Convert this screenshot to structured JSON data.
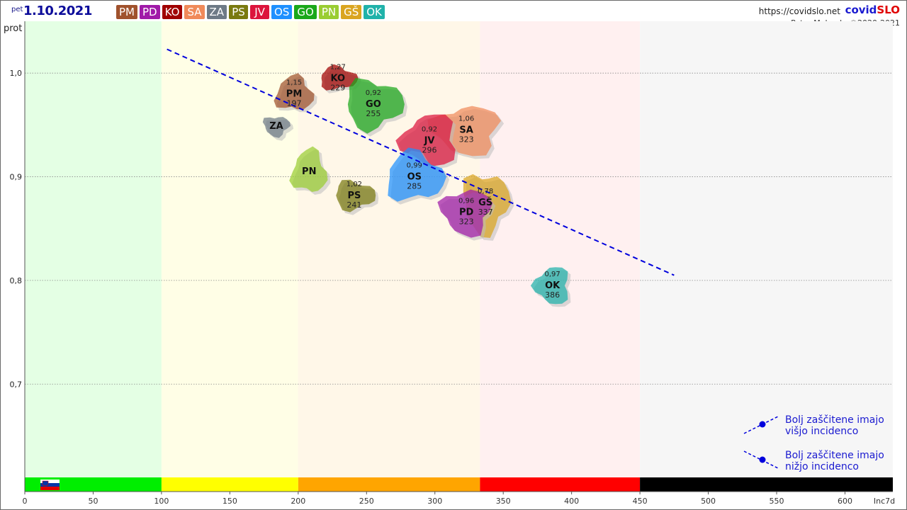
{
  "header": {
    "weekday": "pet",
    "date": "1.10.2021",
    "url": "https://covidslo.net",
    "brand_a": "covid",
    "brand_b": "SLO",
    "author": "Peter Malovrh, ©2020-2021"
  },
  "regions": [
    {
      "code": "PM",
      "color": "#a0522d"
    },
    {
      "code": "PD",
      "color": "#a01aa8"
    },
    {
      "code": "KO",
      "color": "#a00000"
    },
    {
      "code": "SA",
      "color": "#f08a5a"
    },
    {
      "code": "ZA",
      "color": "#6e7a86"
    },
    {
      "code": "PS",
      "color": "#7a7a10"
    },
    {
      "code": "JV",
      "color": "#dc143c"
    },
    {
      "code": "OS",
      "color": "#1e90ff"
    },
    {
      "code": "GO",
      "color": "#1aa81a"
    },
    {
      "code": "PN",
      "color": "#9acd32"
    },
    {
      "code": "GŠ",
      "color": "#daa520"
    },
    {
      "code": "OK",
      "color": "#20b2aa"
    }
  ],
  "legend": {
    "higher_line1": "Bolj zaščitene imajo",
    "higher_line2": "višjo incidenco",
    "lower_line1": "Bolj zaščitene imajo",
    "lower_line2": "nižjo incidenco",
    "dot_color": "#0000dd"
  },
  "chart_data": {
    "type": "scatter",
    "title": "",
    "ylabel": "prot",
    "xlabel": "Inc7d",
    "xlim": [
      0,
      635
    ],
    "ylim": [
      0.61,
      1.05
    ],
    "xticks": [
      0,
      50,
      100,
      150,
      200,
      250,
      300,
      350,
      400,
      450,
      500,
      550,
      600
    ],
    "yticks": [
      0.7,
      0.8,
      0.9,
      1.0
    ],
    "ytick_labels": [
      "0,7",
      "0,8",
      "0,9",
      "1,0"
    ],
    "grid": "horizontal dotted",
    "bands": [
      {
        "from": 0,
        "to": 100,
        "color": "#00ee00",
        "bg": "#e4ffe4"
      },
      {
        "from": 100,
        "to": 200,
        "color": "#ffff00",
        "bg": "#fffee6"
      },
      {
        "from": 200,
        "to": 333,
        "color": "#ffa500",
        "bg": "#fff7e8"
      },
      {
        "from": 333,
        "to": 450,
        "color": "#ff0000",
        "bg": "#fff0f0"
      },
      {
        "from": 450,
        "to": 635,
        "color": "#000000",
        "bg": "#f6f6f6"
      }
    ],
    "trend_line": {
      "x1": 104,
      "y1": 1.023,
      "x2": 475,
      "y2": 0.805,
      "color": "#0000dd"
    },
    "points": [
      {
        "code": "PM",
        "inc": 197,
        "prot": 0.98,
        "ratio": "1,15",
        "color": "#a0522d"
      },
      {
        "code": "KO",
        "inc": 229,
        "prot": 0.995,
        "ratio": "1,27",
        "color": "#a00000"
      },
      {
        "code": "GO",
        "inc": 255,
        "prot": 0.97,
        "ratio": "0,92",
        "color": "#1aa81a"
      },
      {
        "code": "ZA",
        "inc": 184,
        "prot": 0.949,
        "ratio": "",
        "color": "#6e7a86"
      },
      {
        "code": "SA",
        "inc": 323,
        "prot": 0.945,
        "ratio": "1,06",
        "color": "#f08a5a"
      },
      {
        "code": "JV",
        "inc": 296,
        "prot": 0.935,
        "ratio": "0,92",
        "color": "#dc143c"
      },
      {
        "code": "PN",
        "inc": 208,
        "prot": 0.905,
        "ratio": "",
        "color": "#9acd32"
      },
      {
        "code": "OS",
        "inc": 285,
        "prot": 0.9,
        "ratio": "0,99",
        "color": "#1e90ff"
      },
      {
        "code": "PS",
        "inc": 241,
        "prot": 0.882,
        "ratio": "1,02",
        "color": "#7a7a10"
      },
      {
        "code": "GŠ",
        "inc": 337,
        "prot": 0.875,
        "ratio": "0,78",
        "color": "#daa520"
      },
      {
        "code": "PD",
        "inc": 323,
        "prot": 0.866,
        "ratio": "0,96",
        "color": "#a01aa8"
      },
      {
        "code": "OK",
        "inc": 386,
        "prot": 0.795,
        "ratio": "0,97",
        "color": "#20b2aa"
      }
    ]
  }
}
